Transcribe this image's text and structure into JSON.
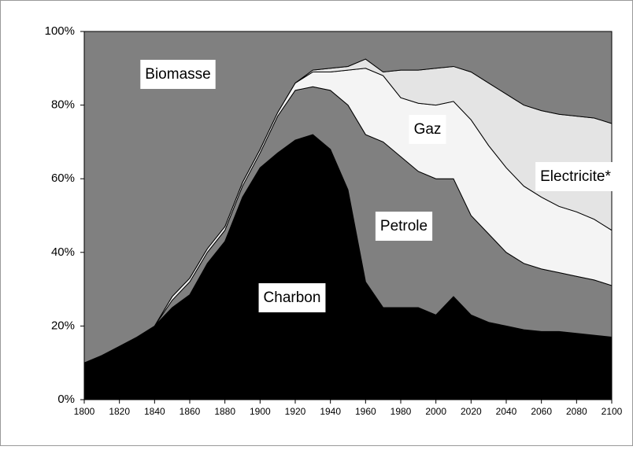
{
  "chart_data": {
    "type": "stacked-area",
    "x": [
      1800,
      1810,
      1820,
      1830,
      1840,
      1850,
      1860,
      1870,
      1880,
      1890,
      1900,
      1910,
      1920,
      1930,
      1940,
      1950,
      1960,
      1970,
      1980,
      1990,
      2000,
      2010,
      2020,
      2030,
      2040,
      2050,
      2060,
      2070,
      2080,
      2090,
      2100
    ],
    "series": [
      {
        "name": "Charbon",
        "color": "#000000",
        "values": [
          10,
          12,
          14.5,
          17,
          20,
          25,
          28.5,
          37,
          43,
          55,
          63,
          67,
          70.5,
          72,
          68,
          57,
          32,
          25,
          25,
          25,
          23,
          28,
          23,
          21,
          20,
          19,
          18.5,
          18.5,
          18,
          17.5,
          17
        ]
      },
      {
        "name": "Petrole",
        "color": "#808080",
        "values": [
          0,
          0,
          0,
          0,
          0,
          2,
          3.5,
          3,
          3,
          3,
          4,
          10,
          13.5,
          13,
          16,
          23,
          40,
          45,
          41,
          37,
          37,
          32,
          27,
          24,
          20,
          18,
          17,
          16,
          15.5,
          15,
          14
        ]
      },
      {
        "name": "Gaz",
        "color": "#f4f4f4",
        "values": [
          0,
          0,
          0,
          0,
          0,
          1,
          1,
          1,
          1,
          1,
          1,
          1,
          2,
          4,
          5,
          9.5,
          18,
          18,
          16,
          18.5,
          20,
          21,
          26,
          24,
          23,
          21,
          19.5,
          18,
          17.5,
          16.5,
          15
        ]
      },
      {
        "name": "Electricite*",
        "color": "#e4e4e4",
        "values": [
          0,
          0,
          0,
          0,
          0,
          0,
          0,
          0,
          0,
          0,
          0,
          0,
          0,
          0.5,
          1,
          1,
          2.5,
          1,
          7.5,
          9,
          10,
          9.5,
          13,
          17,
          20,
          22,
          23.5,
          25,
          26,
          27.5,
          29
        ]
      },
      {
        "name": "Biomasse",
        "color": "#808080",
        "values": [
          90,
          88,
          85.5,
          83,
          80,
          72,
          67,
          59,
          53,
          41,
          32,
          22,
          14,
          10.5,
          10,
          9.5,
          7.5,
          11,
          10.5,
          10.5,
          10,
          9.5,
          11,
          14,
          17,
          20,
          21.5,
          22.5,
          23,
          23.5,
          25
        ]
      }
    ],
    "xlim": [
      1800,
      2100
    ],
    "xticks": [
      1800,
      1820,
      1840,
      1860,
      1880,
      1900,
      1920,
      1940,
      1960,
      1980,
      2000,
      2020,
      2040,
      2060,
      2080,
      2100
    ],
    "ylim": [
      0,
      100
    ],
    "yticks": [
      {
        "value": 0,
        "label": "0%"
      },
      {
        "value": 20,
        "label": "20%"
      },
      {
        "value": 40,
        "label": "40%"
      },
      {
        "value": 60,
        "label": "60%"
      },
      {
        "value": 80,
        "label": "80%"
      },
      {
        "value": 100,
        "label": "100%"
      }
    ]
  }
}
